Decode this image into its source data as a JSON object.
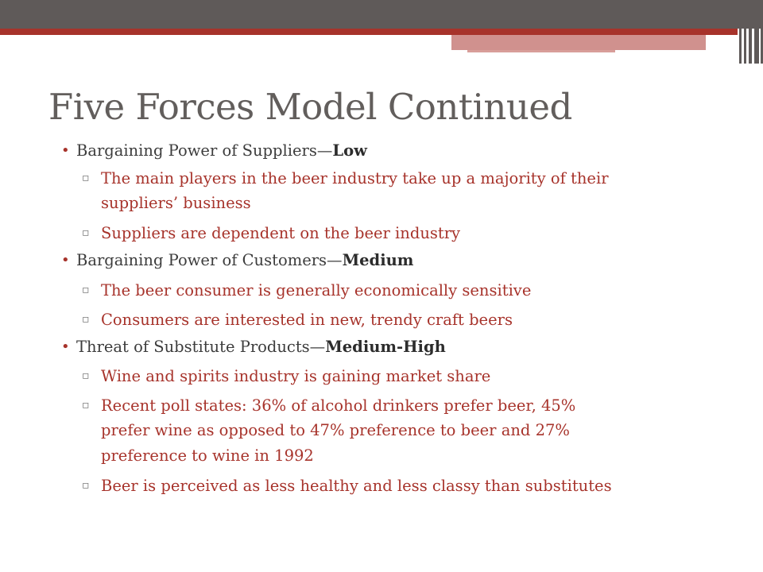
{
  "slide": {
    "title": "Five Forces Model Continued",
    "items": [
      {
        "label": "Bargaining Power of Suppliers—",
        "rating": "Low",
        "subitems": [
          {
            "lines": [
              "The main players in the beer industry take up a majority of their",
              "suppliers’ business"
            ]
          },
          {
            "lines": [
              "Suppliers are dependent on the beer industry"
            ]
          }
        ]
      },
      {
        "label": "Bargaining Power of Customers—",
        "rating": "Medium",
        "subitems": [
          {
            "lines": [
              "The beer consumer is generally economically sensitive"
            ]
          },
          {
            "lines": [
              "Consumers are interested in new, trendy craft beers"
            ]
          }
        ]
      },
      {
        "label": "Threat of Substitute Products—",
        "rating": "Medium-High",
        "subitems": [
          {
            "lines": [
              "Wine and spirits industry is gaining market share"
            ]
          },
          {
            "lines": [
              "Recent poll states: 36% of alcohol drinkers prefer beer, 45%",
              "prefer wine as opposed to 47% preference to beer and 27%",
              "preference to wine in 1992"
            ]
          },
          {
            "lines": [
              "Beer is perceived as less healthy and less classy than substitutes"
            ]
          }
        ]
      }
    ]
  }
}
